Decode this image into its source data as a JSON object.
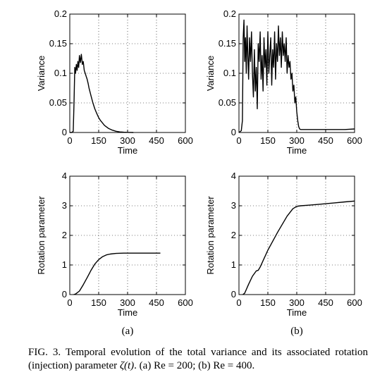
{
  "chart_data": [
    {
      "type": "line",
      "panel": "top-left",
      "xlabel": "Time",
      "ylabel": "Variance",
      "xlim": [
        0,
        600
      ],
      "ylim": [
        0,
        0.2
      ],
      "xticks": [
        0,
        150,
        300,
        450,
        600
      ],
      "yticks": [
        0,
        0.05,
        0.1,
        0.15,
        0.2
      ],
      "ytick_labels": [
        "0",
        "0.05",
        "0.1",
        "0.15",
        "0.2"
      ],
      "grid": true,
      "series": [
        {
          "x": [
            0,
            10,
            18,
            22,
            26,
            30,
            34,
            38,
            42,
            46,
            50,
            55,
            60,
            65,
            70,
            75,
            80,
            85,
            90,
            95,
            100,
            110,
            120,
            130,
            140,
            150,
            160,
            170,
            180,
            200,
            220,
            240,
            260,
            280,
            300,
            330
          ],
          "y": [
            0,
            0,
            0.002,
            0.05,
            0.11,
            0.1,
            0.115,
            0.105,
            0.12,
            0.11,
            0.13,
            0.118,
            0.132,
            0.115,
            0.12,
            0.105,
            0.1,
            0.095,
            0.09,
            0.083,
            0.075,
            0.062,
            0.05,
            0.04,
            0.032,
            0.025,
            0.02,
            0.016,
            0.012,
            0.007,
            0.004,
            0.002,
            0.001,
            0.0005,
            0.0002,
            0
          ]
        }
      ]
    },
    {
      "type": "line",
      "panel": "top-right",
      "xlabel": "Time",
      "ylabel": "Variance",
      "xlim": [
        0,
        600
      ],
      "ylim": [
        0,
        0.2
      ],
      "xticks": [
        0,
        150,
        300,
        450,
        600
      ],
      "yticks": [
        0,
        0.05,
        0.1,
        0.15,
        0.2
      ],
      "ytick_labels": [
        "0",
        "0.05",
        "0.1",
        "0.15",
        "0.2"
      ],
      "grid": true,
      "series": [
        {
          "x": [
            0,
            12,
            18,
            22,
            26,
            30,
            34,
            38,
            42,
            46,
            50,
            55,
            60,
            65,
            70,
            75,
            80,
            85,
            90,
            95,
            100,
            105,
            110,
            115,
            120,
            125,
            130,
            135,
            140,
            145,
            150,
            155,
            160,
            165,
            170,
            175,
            180,
            185,
            190,
            195,
            200,
            205,
            210,
            215,
            220,
            225,
            230,
            235,
            240,
            245,
            250,
            255,
            260,
            265,
            270,
            275,
            280,
            285,
            290,
            295,
            300,
            305,
            310,
            315,
            320,
            330,
            350,
            400,
            450,
            500,
            550,
            600
          ],
          "y": [
            0,
            0.003,
            0.02,
            0.16,
            0.19,
            0.12,
            0.16,
            0.1,
            0.18,
            0.13,
            0.09,
            0.16,
            0.12,
            0.17,
            0.1,
            0.06,
            0.14,
            0.07,
            0.11,
            0.04,
            0.15,
            0.12,
            0.17,
            0.09,
            0.13,
            0.07,
            0.16,
            0.11,
            0.14,
            0.08,
            0.17,
            0.1,
            0.13,
            0.16,
            0.08,
            0.14,
            0.11,
            0.17,
            0.09,
            0.15,
            0.12,
            0.18,
            0.13,
            0.16,
            0.11,
            0.17,
            0.13,
            0.15,
            0.12,
            0.16,
            0.1,
            0.13,
            0.11,
            0.12,
            0.09,
            0.1,
            0.07,
            0.08,
            0.05,
            0.06,
            0.035,
            0.02,
            0.01,
            0.006,
            0.005,
            0.005,
            0.005,
            0.005,
            0.005,
            0.005,
            0.005,
            0.006
          ]
        }
      ]
    },
    {
      "type": "line",
      "panel": "bottom-left",
      "xlabel": "Time",
      "ylabel": "Rotation parameter",
      "xlim": [
        0,
        600
      ],
      "ylim": [
        0,
        4
      ],
      "xticks": [
        0,
        150,
        300,
        450,
        600
      ],
      "yticks": [
        0,
        1,
        2,
        3,
        4
      ],
      "ytick_labels": [
        "0",
        "1",
        "2",
        "3",
        "4"
      ],
      "grid": true,
      "series": [
        {
          "x": [
            20,
            30,
            50,
            70,
            90,
            110,
            130,
            150,
            170,
            190,
            210,
            240,
            280,
            320,
            380,
            440,
            470
          ],
          "y": [
            0,
            0.02,
            0.12,
            0.33,
            0.57,
            0.82,
            1.03,
            1.18,
            1.28,
            1.34,
            1.37,
            1.39,
            1.4,
            1.4,
            1.4,
            1.4,
            1.4
          ]
        }
      ]
    },
    {
      "type": "line",
      "panel": "bottom-right",
      "xlabel": "Time",
      "ylabel": "Rotation parameter",
      "xlim": [
        0,
        600
      ],
      "ylim": [
        0,
        4
      ],
      "xticks": [
        0,
        150,
        300,
        450,
        600
      ],
      "yticks": [
        0,
        1,
        2,
        3,
        4
      ],
      "ytick_labels": [
        "0",
        "1",
        "2",
        "3",
        "4"
      ],
      "grid": true,
      "series": [
        {
          "x": [
            20,
            30,
            50,
            70,
            90,
            100,
            110,
            150,
            200,
            250,
            280,
            300,
            320,
            360,
            400,
            450,
            500,
            550,
            600
          ],
          "y": [
            0,
            0.05,
            0.35,
            0.62,
            0.8,
            0.82,
            0.93,
            1.5,
            2.1,
            2.65,
            2.9,
            2.98,
            3.0,
            3.02,
            3.04,
            3.07,
            3.1,
            3.13,
            3.16
          ]
        }
      ]
    }
  ],
  "panel_labels": [
    "(a)",
    "(b)"
  ],
  "caption": {
    "prefix": "FIG. 3.  Temporal evolution of the total variance and its associated rotation (injection) parameter ",
    "symbol": "ζ(t)",
    "suffix": ".  (a) Re = 200; (b) Re = 400."
  }
}
